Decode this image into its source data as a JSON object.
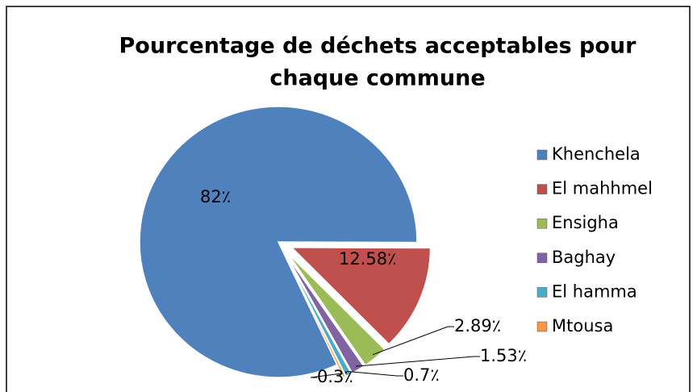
{
  "chart_data": {
    "type": "pie",
    "title": [
      "Pourcentage de déchets acceptables pour",
      "chaque commune"
    ],
    "categories": [
      "Khenchela",
      "El mahhmel",
      "Ensigha",
      "Baghay",
      "El hamma",
      "Mtousa"
    ],
    "values": [
      82,
      12.58,
      2.89,
      1.53,
      0.7,
      0.3
    ],
    "value_labels": [
      "82٪",
      "12.58٪",
      "2.89٪",
      "1.53٪",
      "0.7٪",
      "0.3٪"
    ],
    "colors": [
      "#4f81bd",
      "#c0504d",
      "#9bbb59",
      "#8064a2",
      "#4bacc6",
      "#f79646"
    ],
    "legend": "right"
  }
}
